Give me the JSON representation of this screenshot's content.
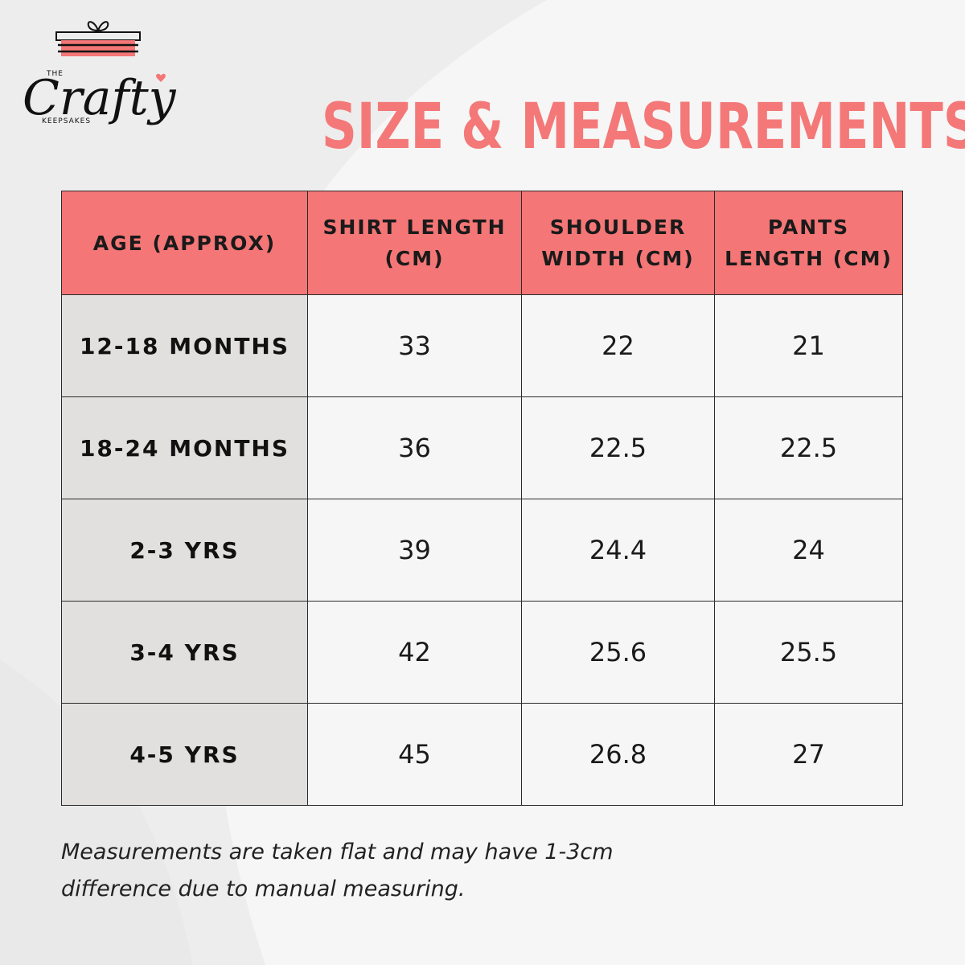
{
  "brand": {
    "prefix": "THE",
    "name": "Crafty",
    "tagline": "KEEPSAKES"
  },
  "title": "SIZE & MEASUREMENTS",
  "colors": {
    "accent": "#f47676",
    "age_cell": "#e1e0de",
    "value_cell": "#f6f6f6",
    "background": "#ededed"
  },
  "table": {
    "headers": [
      [
        "AGE (APPROX)"
      ],
      [
        "SHIRT LENGTH",
        "(CM)"
      ],
      [
        "SHOULDER",
        "WIDTH (CM)"
      ],
      [
        "PANTS",
        "LENGTH (CM)"
      ]
    ],
    "rows": [
      {
        "age": "12-18 MONTHS",
        "shirt_length": "33",
        "shoulder_width": "22",
        "pants_length": "21"
      },
      {
        "age": "18-24 MONTHS",
        "shirt_length": "36",
        "shoulder_width": "22.5",
        "pants_length": "22.5"
      },
      {
        "age": "2-3 YRS",
        "shirt_length": "39",
        "shoulder_width": "24.4",
        "pants_length": "24"
      },
      {
        "age": "3-4 YRS",
        "shirt_length": "42",
        "shoulder_width": "25.6",
        "pants_length": "25.5"
      },
      {
        "age": "4-5 YRS",
        "shirt_length": "45",
        "shoulder_width": "26.8",
        "pants_length": "27"
      }
    ]
  },
  "note": [
    "Measurements are taken flat and may have 1-3cm",
    "difference due to manual measuring."
  ]
}
